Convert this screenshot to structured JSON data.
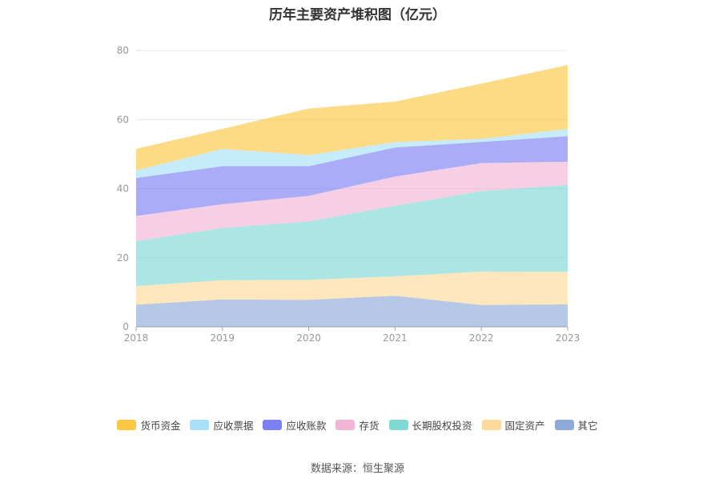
{
  "chart_data": {
    "type": "area",
    "stacked": true,
    "title": "历年主要资产堆积图（亿元）",
    "categories": [
      "2018",
      "2019",
      "2020",
      "2021",
      "2022",
      "2023"
    ],
    "ylim": [
      0,
      80
    ],
    "yticks": [
      "0",
      "20",
      "40",
      "60",
      "80"
    ],
    "grid": true,
    "legend_position": "bottom",
    "series": [
      {
        "name": "其它",
        "color": "#8eaad8",
        "values": [
          6.4,
          7.9,
          7.8,
          9.0,
          6.3,
          6.5
        ]
      },
      {
        "name": "固定资产",
        "color": "#fdd99a",
        "values": [
          5.4,
          5.6,
          5.8,
          5.6,
          9.7,
          9.4
        ]
      },
      {
        "name": "长期股权投资",
        "color": "#7fd9d5",
        "values": [
          13.0,
          15.1,
          16.9,
          20.4,
          23.3,
          25.2
        ]
      },
      {
        "name": "存货",
        "color": "#f1b6d6",
        "values": [
          7.3,
          6.9,
          7.4,
          8.5,
          8.1,
          6.7
        ]
      },
      {
        "name": "应收账款",
        "color": "#7d80f2",
        "values": [
          11.0,
          11.0,
          8.6,
          8.4,
          6.1,
          7.4
        ]
      },
      {
        "name": "应收票据",
        "color": "#a8e0f7",
        "values": [
          2.2,
          5.0,
          3.2,
          1.6,
          0.9,
          2.1
        ]
      },
      {
        "name": "货币资金",
        "color": "#fcc843",
        "values": [
          6.2,
          5.8,
          13.5,
          11.7,
          16.0,
          18.5
        ]
      }
    ]
  },
  "legend": {
    "items": [
      {
        "label": "货币资金",
        "color": "#fcc843"
      },
      {
        "label": "应收票据",
        "color": "#a8e0f7"
      },
      {
        "label": "应收账款",
        "color": "#7d80f2"
      },
      {
        "label": "存货",
        "color": "#f1b6d6"
      },
      {
        "label": "长期股权投资",
        "color": "#7fd9d5"
      },
      {
        "label": "固定资产",
        "color": "#fdd99a"
      },
      {
        "label": "其它",
        "color": "#8eaad8"
      }
    ]
  },
  "footer": {
    "source": "数据来源：恒生聚源"
  }
}
